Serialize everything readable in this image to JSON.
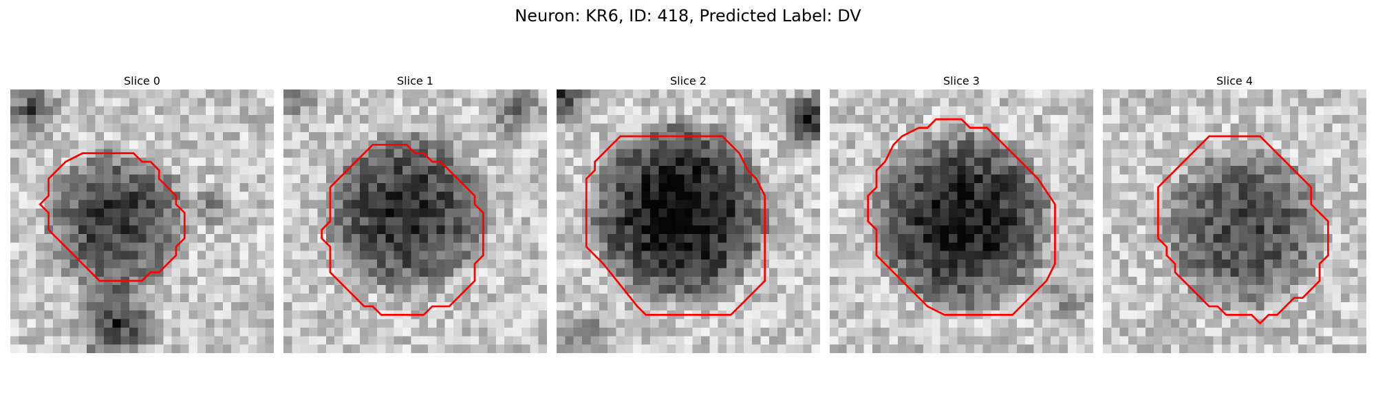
{
  "figure": {
    "title": "Neuron: KR6, ID: 418, Predicted Label: DV"
  },
  "slices": [
    {
      "title": "Slice 0",
      "contour_color": "#ff0000"
    },
    {
      "title": "Slice 1",
      "contour_color": "#ff0000"
    },
    {
      "title": "Slice 2",
      "contour_color": "#ff0000"
    },
    {
      "title": "Slice 3",
      "contour_color": "#ff0000"
    },
    {
      "title": "Slice 4",
      "contour_color": "#ff0000"
    }
  ],
  "colormap": "gray"
}
